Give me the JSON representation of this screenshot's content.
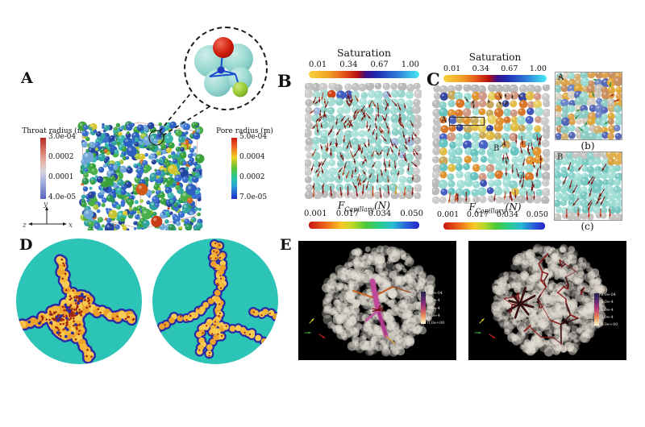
{
  "figure": {
    "panel_a": {
      "label": "A",
      "throat_colorbar": {
        "title": "Throat radius (m)",
        "ticks": [
          "3.0e-04",
          "0.0002",
          "0.0001",
          "4.0e-05"
        ]
      },
      "pore_colorbar": {
        "title": "Pore radius (m)",
        "ticks": [
          "5.0e-04",
          "0.0004",
          "0.0002",
          "7.0e-05"
        ]
      },
      "axis_labels": {
        "x": "x",
        "y": "y",
        "z": "z"
      }
    },
    "panel_b": {
      "label": "B",
      "saturation_colorbar": {
        "title": "Saturation",
        "ticks": [
          "0.01",
          "0.34",
          "0.67",
          "1.00"
        ]
      },
      "capillary_force_label": {
        "symbol": "F",
        "subscript": "Capillary",
        "argument": "(N)"
      },
      "capillary_colorbar": {
        "ticks": [
          "0.001",
          "0.017",
          "0.034",
          "0.050"
        ]
      }
    },
    "panel_c": {
      "label": "C",
      "saturation_colorbar": {
        "title": "Saturation",
        "ticks": [
          "0.01",
          "0.34",
          "0.67",
          "1.00"
        ]
      },
      "capillary_force_label": {
        "symbol": "F",
        "subscript": "Capillary",
        "argument": "(N)"
      },
      "capillary_colorbar": {
        "ticks": [
          "0.001",
          "0.017",
          "0.034",
          "0.050"
        ]
      },
      "region_a_label": "A",
      "region_b_label": "B",
      "subpanel_b": {
        "label": "A",
        "caption": "(b)"
      },
      "subpanel_c": {
        "label": "B",
        "caption": "(c)"
      }
    },
    "panel_d": {
      "label": "D"
    },
    "panel_e": {
      "label": "E",
      "force_colorbar": {
        "title": "Fc (N)",
        "ticks": [
          "8.0e-04",
          "6.0e-4",
          "4.0e-4",
          "2.0e-4",
          "0.0e+00"
        ]
      }
    },
    "colors": {
      "teal_background": "#2cc4b6",
      "cluster_fill": "#f2b32e",
      "cluster_outline": "#2a2aa8",
      "arrow_red": "#7c1410",
      "panel_e_background": "#000000"
    }
  }
}
